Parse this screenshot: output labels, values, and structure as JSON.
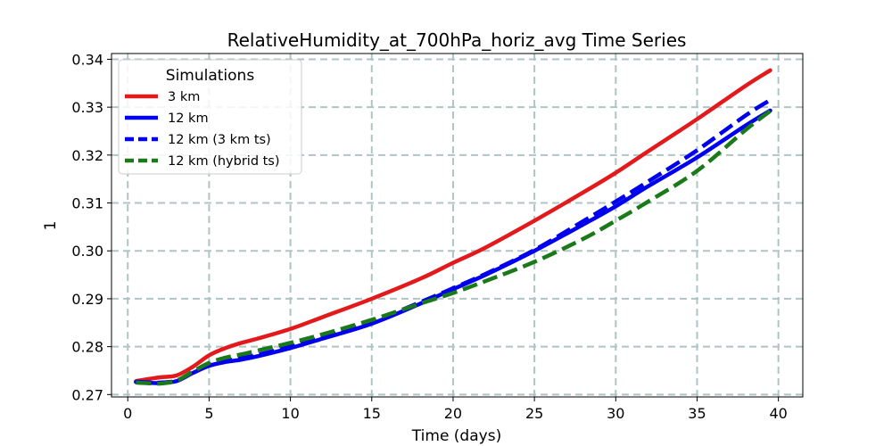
{
  "chart_data": {
    "type": "line",
    "title": "RelativeHumidity_at_700hPa_horiz_avg Time Series",
    "xlabel": "Time (days)",
    "ylabel": "1",
    "xlim": [
      -1.0,
      41.5
    ],
    "ylim": [
      0.2695,
      0.3412
    ],
    "xticks": [
      0,
      5,
      10,
      15,
      20,
      25,
      30,
      35,
      40
    ],
    "yticks": [
      0.27,
      0.28,
      0.29,
      0.3,
      0.31,
      0.32,
      0.33,
      0.34
    ],
    "xtick_labels": [
      "0",
      "5",
      "10",
      "15",
      "20",
      "25",
      "30",
      "35",
      "40"
    ],
    "ytick_labels": [
      "0.27",
      "0.28",
      "0.29",
      "0.30",
      "0.31",
      "0.32",
      "0.33",
      "0.34"
    ],
    "grid": true,
    "legend": {
      "title": "Simulations",
      "placement": "top-left"
    },
    "series": [
      {
        "name": "3 km",
        "color": "#e31a1c",
        "style": "solid",
        "x": [
          0.5,
          1,
          2,
          3,
          4,
          5,
          6,
          7,
          8,
          10,
          12,
          15,
          18,
          20,
          22,
          25,
          28,
          30,
          32,
          35,
          38,
          39.5
        ],
        "y": [
          0.2728,
          0.2731,
          0.2736,
          0.274,
          0.2758,
          0.2782,
          0.2797,
          0.2808,
          0.2817,
          0.2837,
          0.2862,
          0.29,
          0.2942,
          0.2975,
          0.3007,
          0.3063,
          0.3122,
          0.3163,
          0.3208,
          0.3275,
          0.3345,
          0.3377
        ]
      },
      {
        "name": "12 km",
        "color": "#0000ee",
        "style": "solid",
        "x": [
          0.5,
          1,
          2,
          3,
          4,
          5,
          6,
          7,
          8,
          10,
          12,
          15,
          18,
          20,
          22,
          25,
          28,
          30,
          32,
          35,
          38,
          39.5
        ],
        "y": [
          0.2726,
          0.2725,
          0.2724,
          0.2728,
          0.2745,
          0.276,
          0.2768,
          0.2773,
          0.278,
          0.2797,
          0.2817,
          0.2848,
          0.289,
          0.292,
          0.295,
          0.3,
          0.3055,
          0.3093,
          0.3135,
          0.3195,
          0.3262,
          0.3293
        ]
      },
      {
        "name": "12 km (3 km ts)",
        "color": "#0000ee",
        "style": "dashed",
        "x": [
          0.5,
          1,
          2,
          3,
          4,
          5,
          6,
          7,
          8,
          10,
          12,
          15,
          18,
          20,
          22,
          25,
          28,
          30,
          32,
          35,
          38,
          39.5
        ],
        "y": [
          0.2727,
          0.2726,
          0.2725,
          0.2729,
          0.2746,
          0.2762,
          0.277,
          0.2776,
          0.2783,
          0.28,
          0.282,
          0.2852,
          0.2893,
          0.2922,
          0.2952,
          0.3002,
          0.3062,
          0.3103,
          0.3145,
          0.321,
          0.3283,
          0.3315
        ]
      },
      {
        "name": "12 km (hybrid ts)",
        "color": "#1a7a1a",
        "style": "dashed",
        "x": [
          0.5,
          1,
          2,
          3,
          4,
          5,
          6,
          7,
          8,
          10,
          12,
          15,
          18,
          20,
          22,
          25,
          28,
          30,
          32,
          35,
          38,
          39.5
        ],
        "y": [
          0.2725,
          0.2724,
          0.2723,
          0.2729,
          0.2748,
          0.2766,
          0.2777,
          0.2784,
          0.2792,
          0.2808,
          0.2826,
          0.2856,
          0.289,
          0.2912,
          0.2937,
          0.2977,
          0.3025,
          0.3063,
          0.3103,
          0.3167,
          0.3253,
          0.3292
        ]
      }
    ]
  }
}
